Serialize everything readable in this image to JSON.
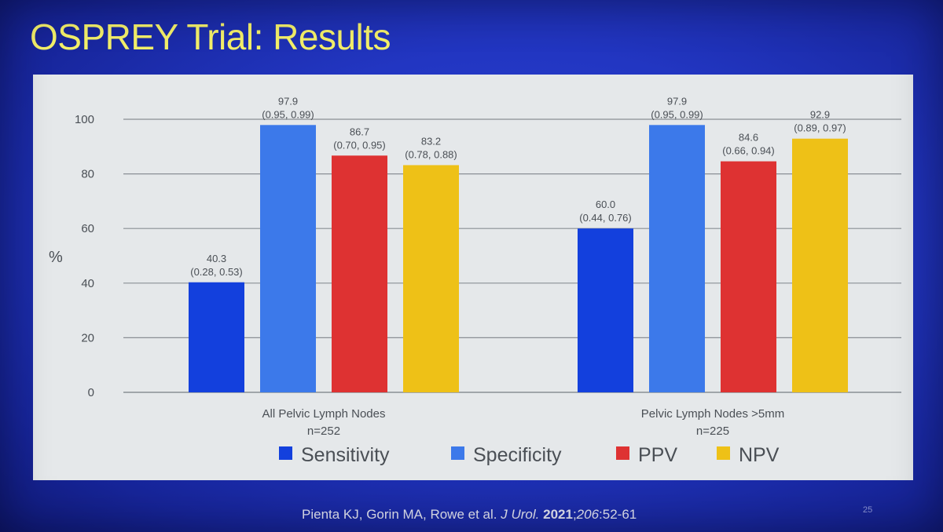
{
  "slide": {
    "title": "OSPREY Trial: Results",
    "page_number": "25"
  },
  "citation": {
    "authors": "Pienta KJ, Gorin MA, Rowe",
    "etal": "et al.",
    "journal": "J Urol.",
    "year": "2021",
    "volume": "206",
    "pages": ":52-61"
  },
  "colors": {
    "sensitivity": "#1340dd",
    "specificity": "#3c79ea",
    "ppv": "#de3232",
    "npv": "#eec117",
    "grid": "#8a8f95",
    "text": "#4a4f55"
  },
  "chart_data": {
    "type": "bar",
    "title": "",
    "ylabel": "%",
    "ylim": [
      0,
      100
    ],
    "yticks": [
      0,
      20,
      40,
      60,
      80,
      100
    ],
    "grid": true,
    "legend_position": "bottom",
    "groups": [
      {
        "name": "All Pelvic Lymph Nodes",
        "n": "n=252"
      },
      {
        "name": "Pelvic Lymph Nodes >5mm",
        "n": "n=225"
      }
    ],
    "series": [
      {
        "key": "sensitivity",
        "name": "Sensitivity",
        "values": [
          40.3,
          60.0
        ],
        "labels": [
          "40.3",
          "60.0"
        ],
        "ci": [
          "(0.28, 0.53)",
          "(0.44, 0.76)"
        ]
      },
      {
        "key": "specificity",
        "name": "Specificity",
        "values": [
          97.9,
          97.9
        ],
        "labels": [
          "97.9",
          "97.9"
        ],
        "ci": [
          "(0.95, 0.99)",
          "(0.95, 0.99)"
        ]
      },
      {
        "key": "ppv",
        "name": "PPV",
        "values": [
          86.7,
          84.6
        ],
        "labels": [
          "86.7",
          "84.6"
        ],
        "ci": [
          "(0.70, 0.95)",
          "(0.66, 0.94)"
        ]
      },
      {
        "key": "npv",
        "name": "NPV",
        "values": [
          83.2,
          92.9
        ],
        "labels": [
          "83.2",
          "92.9"
        ],
        "ci": [
          "(0.78, 0.88)",
          "(0.89, 0.97)"
        ]
      }
    ]
  }
}
